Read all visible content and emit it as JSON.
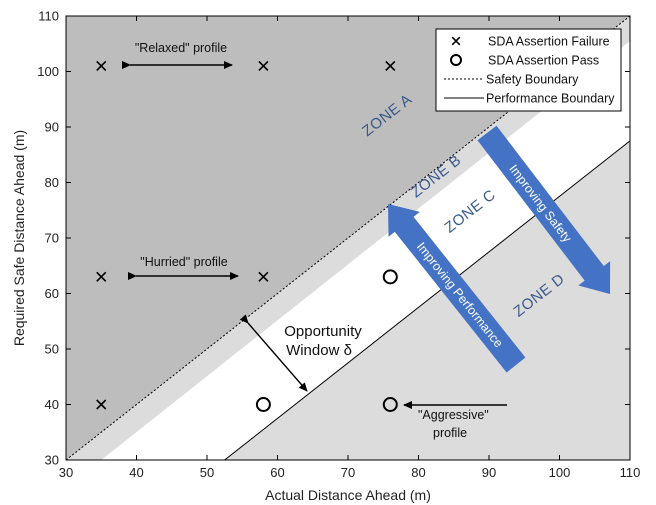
{
  "chart_data": {
    "type": "scatter",
    "title": "",
    "xlabel": "Actual Distance Ahead (m)",
    "ylabel": "Required Safe Distance Ahead (m)",
    "xlim": [
      30,
      110
    ],
    "ylim": [
      30,
      110
    ],
    "xticks": [
      30,
      40,
      50,
      60,
      70,
      80,
      90,
      100,
      110
    ],
    "yticks": [
      30,
      40,
      50,
      60,
      70,
      80,
      90,
      100,
      110
    ],
    "grid": false,
    "legend_position": "top-right",
    "series": [
      {
        "name": "SDA Assertion Failure",
        "marker": "x",
        "points": [
          [
            35,
            101
          ],
          [
            58,
            101
          ],
          [
            76,
            101
          ],
          [
            35,
            63
          ],
          [
            58,
            63
          ],
          [
            35,
            40
          ]
        ]
      },
      {
        "name": "SDA Assertion Pass",
        "marker": "o",
        "points": [
          [
            76,
            63
          ],
          [
            58,
            40
          ],
          [
            76,
            40
          ]
        ]
      }
    ],
    "lines": [
      {
        "name": "Safety Boundary",
        "style": "dotted",
        "from": [
          30,
          30
        ],
        "to": [
          110,
          110
        ]
      },
      {
        "name": "Performance Boundary",
        "style": "solid",
        "from": [
          52.5,
          30
        ],
        "to": [
          110,
          87.5
        ]
      }
    ],
    "zones": [
      {
        "label": "ZONE A",
        "color": "#bdbdbd"
      },
      {
        "label": "ZONE B",
        "color": "#dcdcdc"
      },
      {
        "label": "ZONE C",
        "color": "#ffffff"
      },
      {
        "label": "ZONE D",
        "color": "#dcdcdc"
      }
    ],
    "annotations": {
      "relaxed": "\"Relaxed\" profile",
      "hurried": "\"Hurried\" profile",
      "aggressive_line1": "\"Aggressive\"",
      "aggressive_line2": "profile",
      "window_line1": "Opportunity",
      "window_line2": "Window δ",
      "improving_safety": "Improving Safety",
      "improving_performance": "Improving Performance"
    },
    "colors": {
      "arrow": "#4472c4",
      "zone_label": "#3a5a8c"
    }
  }
}
